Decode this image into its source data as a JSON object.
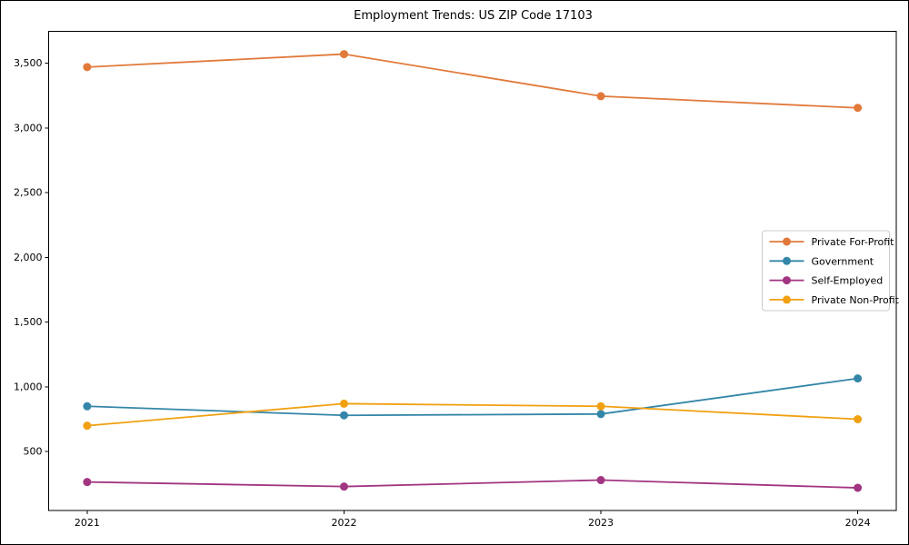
{
  "chart_data": {
    "type": "line",
    "title": "Employment Trends: US ZIP Code 17103",
    "categories": [
      2021,
      2022,
      2023,
      2024
    ],
    "series": [
      {
        "name": "Private For-Profit",
        "color": "#e1793a",
        "values": [
          3470,
          3570,
          3245,
          3155
        ]
      },
      {
        "name": "Government",
        "color": "#3486a8",
        "values": [
          850,
          780,
          790,
          1065
        ]
      },
      {
        "name": "Self-Employed",
        "color": "#a23582",
        "values": [
          265,
          230,
          280,
          220
        ]
      },
      {
        "name": "Private Non-Profit",
        "color": "#f0a010",
        "values": [
          700,
          870,
          850,
          750
        ]
      }
    ],
    "xticks": [
      2021,
      2022,
      2023,
      2024
    ],
    "xtick_labels": [
      "2021",
      "2022",
      "2023",
      "2024"
    ],
    "yticks": [
      500,
      1000,
      1500,
      2000,
      2500,
      3000,
      3500
    ],
    "ytick_labels": [
      "500",
      "1,000",
      "1,500",
      "2,000",
      "2,500",
      "3,000",
      "3,500"
    ],
    "xlim": [
      2020.85,
      2024.15
    ],
    "ylim": [
      45,
      3746
    ],
    "grid": false,
    "legend_position": "center-right",
    "axis_color": "#000000",
    "legend_border_color": "#cccccc",
    "legend_background": "#ffffff"
  }
}
